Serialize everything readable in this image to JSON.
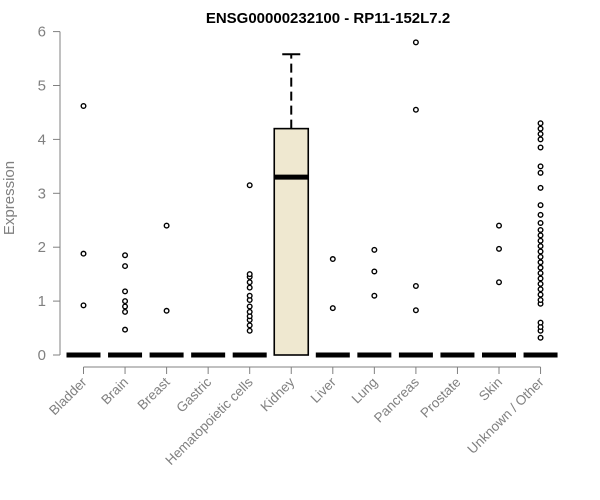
{
  "chart_data": {
    "type": "boxplot",
    "title": "ENSG00000232100 - RP11-152L7.2",
    "xlabel": "",
    "ylabel": "Expression",
    "ylim": [
      0,
      6
    ],
    "yticks": [
      0,
      1,
      2,
      3,
      4,
      5,
      6
    ],
    "grid": false,
    "colors": {
      "box_fill": "#efe8d0",
      "box_stroke": "#000000",
      "axis": "#808080"
    },
    "categories": [
      "Bladder",
      "Brain",
      "Breast",
      "Gastric",
      "Hematopoietic cells",
      "Kidney",
      "Liver",
      "Lung",
      "Pancreas",
      "Prostate",
      "Skin",
      "Unknown / Other"
    ],
    "boxes": [
      {
        "category": "Bladder",
        "q1": 0,
        "median": 0,
        "q3": 0,
        "whisker_low": 0,
        "whisker_high": 0,
        "outliers": [
          0.92,
          1.88,
          4.62
        ]
      },
      {
        "category": "Brain",
        "q1": 0,
        "median": 0,
        "q3": 0,
        "whisker_low": 0,
        "whisker_high": 0,
        "outliers": [
          0.47,
          0.8,
          0.9,
          1.0,
          1.18,
          1.65,
          1.85
        ]
      },
      {
        "category": "Breast",
        "q1": 0,
        "median": 0,
        "q3": 0,
        "whisker_low": 0,
        "whisker_high": 0,
        "outliers": [
          0.82,
          2.4
        ]
      },
      {
        "category": "Gastric",
        "q1": 0,
        "median": 0,
        "q3": 0,
        "whisker_low": 0,
        "whisker_high": 0,
        "outliers": []
      },
      {
        "category": "Hematopoietic cells",
        "q1": 0,
        "median": 0,
        "q3": 0,
        "whisker_low": 0,
        "whisker_high": 0,
        "outliers": [
          0.45,
          0.55,
          0.65,
          0.72,
          0.8,
          0.9,
          1.02,
          1.1,
          1.25,
          1.35,
          1.45,
          1.5,
          3.15
        ]
      },
      {
        "category": "Kidney",
        "q1": 0,
        "median": 3.3,
        "q3": 4.2,
        "whisker_low": 0,
        "whisker_high": 5.58,
        "outliers": []
      },
      {
        "category": "Liver",
        "q1": 0,
        "median": 0,
        "q3": 0,
        "whisker_low": 0,
        "whisker_high": 0,
        "outliers": [
          0.87,
          1.78
        ]
      },
      {
        "category": "Lung",
        "q1": 0,
        "median": 0,
        "q3": 0,
        "whisker_low": 0,
        "whisker_high": 0,
        "outliers": [
          1.1,
          1.55,
          1.95
        ]
      },
      {
        "category": "Pancreas",
        "q1": 0,
        "median": 0,
        "q3": 0,
        "whisker_low": 0,
        "whisker_high": 0,
        "outliers": [
          0.83,
          1.28,
          4.55,
          5.8
        ]
      },
      {
        "category": "Prostate",
        "q1": 0,
        "median": 0,
        "q3": 0,
        "whisker_low": 0,
        "whisker_high": 0,
        "outliers": []
      },
      {
        "category": "Skin",
        "q1": 0,
        "median": 0,
        "q3": 0,
        "whisker_low": 0,
        "whisker_high": 0,
        "outliers": [
          1.35,
          1.97,
          2.4
        ]
      },
      {
        "category": "Unknown / Other",
        "q1": 0,
        "median": 0,
        "q3": 0,
        "whisker_low": 0,
        "whisker_high": 0,
        "outliers": [
          0.32,
          0.45,
          0.52,
          0.6,
          0.95,
          1.02,
          1.12,
          1.22,
          1.32,
          1.42,
          1.52,
          1.62,
          1.72,
          1.82,
          1.92,
          2.02,
          2.12,
          2.22,
          2.32,
          2.45,
          2.6,
          2.78,
          3.1,
          3.38,
          3.5,
          3.85,
          4.0,
          4.1,
          4.2,
          4.3
        ]
      }
    ]
  }
}
